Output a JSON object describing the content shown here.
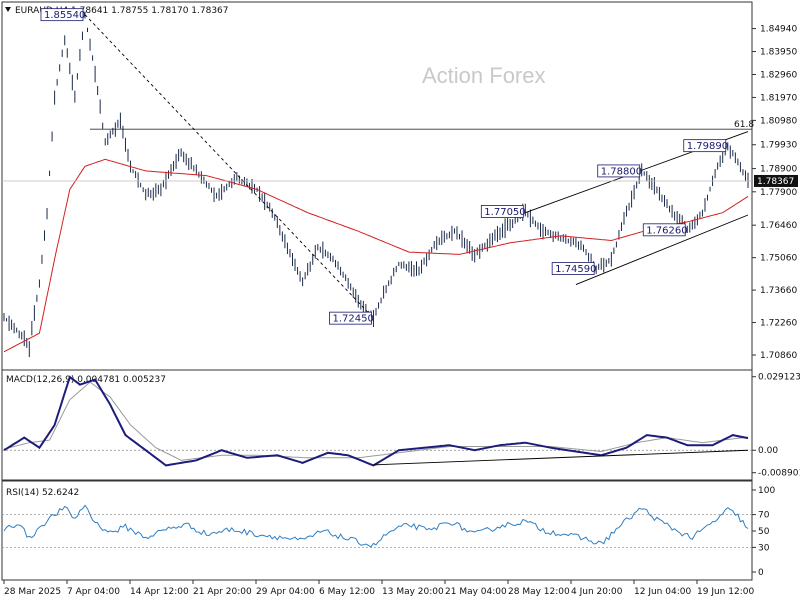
{
  "header": {
    "symbol_line": "EURAUD,H4  1.78641 1.78755 1.78170 1.78367",
    "watermark": "Action Forex"
  },
  "colors": {
    "price_bars": "#1a2a4a",
    "ma_line": "#d42020",
    "macd_line": "#1c1c7a",
    "macd_signal": "#9a9a9a",
    "rsi_line": "#2f7fc4",
    "trendline": "#000000",
    "background": "#ffffff"
  },
  "chart_data": [
    {
      "type": "line",
      "name": "price",
      "title": "EURAUD,H4",
      "ylim": [
        1.703,
        1.86
      ],
      "y_ticks": [
        "1.84940",
        "1.83950",
        "1.82960",
        "1.81970",
        "1.80980",
        "1.79930",
        "1.78900",
        "1.77900",
        "1.76460",
        "1.75060",
        "1.73660",
        "1.72260",
        "1.70860"
      ],
      "current_price": "1.78367",
      "fib_label": "61.8",
      "fib_level": 1.806,
      "x_tick_labels": [
        "28 Mar 2025",
        "7 Apr 04:00",
        "14 Apr 12:00",
        "21 Apr 20:00",
        "29 Apr 04:00",
        "6 May 12:00",
        "13 May 20:00",
        "21 May 04:00",
        "28 May 12:00",
        "4 Jun 20:00",
        "12 Jun 04:00",
        "19 Jun 12:00"
      ],
      "anchors": [
        [
          0,
          1.725
        ],
        [
          6,
          1.718
        ],
        [
          10,
          1.712
        ],
        [
          14,
          1.74
        ],
        [
          17,
          1.77
        ],
        [
          20,
          1.82
        ],
        [
          24,
          1.845
        ],
        [
          28,
          1.82
        ],
        [
          32,
          1.8554
        ],
        [
          36,
          1.83
        ],
        [
          40,
          1.8
        ],
        [
          46,
          1.81
        ],
        [
          50,
          1.79
        ],
        [
          56,
          1.778
        ],
        [
          62,
          1.78
        ],
        [
          70,
          1.796
        ],
        [
          76,
          1.788
        ],
        [
          84,
          1.777
        ],
        [
          92,
          1.785
        ],
        [
          100,
          1.78
        ],
        [
          106,
          1.77
        ],
        [
          114,
          1.75
        ],
        [
          118,
          1.74
        ],
        [
          124,
          1.755
        ],
        [
          130,
          1.75
        ],
        [
          136,
          1.74
        ],
        [
          142,
          1.728
        ],
        [
          146,
          1.7245
        ],
        [
          150,
          1.735
        ],
        [
          156,
          1.748
        ],
        [
          164,
          1.745
        ],
        [
          170,
          1.756
        ],
        [
          178,
          1.762
        ],
        [
          186,
          1.752
        ],
        [
          194,
          1.76
        ],
        [
          200,
          1.765
        ],
        [
          206,
          1.7705
        ],
        [
          212,
          1.763
        ],
        [
          220,
          1.759
        ],
        [
          228,
          1.756
        ],
        [
          234,
          1.7459
        ],
        [
          240,
          1.75
        ],
        [
          246,
          1.77
        ],
        [
          252,
          1.788
        ],
        [
          258,
          1.78
        ],
        [
          264,
          1.77
        ],
        [
          270,
          1.7626
        ],
        [
          276,
          1.77
        ],
        [
          282,
          1.79
        ],
        [
          286,
          1.7989
        ],
        [
          290,
          1.792
        ],
        [
          294,
          1.7837
        ]
      ],
      "ma_anchors": [
        [
          0,
          1.71
        ],
        [
          14,
          1.718
        ],
        [
          20,
          1.75
        ],
        [
          26,
          1.78
        ],
        [
          32,
          1.79
        ],
        [
          40,
          1.793
        ],
        [
          56,
          1.788
        ],
        [
          80,
          1.786
        ],
        [
          100,
          1.78
        ],
        [
          120,
          1.77
        ],
        [
          140,
          1.762
        ],
        [
          160,
          1.753
        ],
        [
          180,
          1.752
        ],
        [
          200,
          1.757
        ],
        [
          220,
          1.76
        ],
        [
          240,
          1.758
        ],
        [
          256,
          1.763
        ],
        [
          270,
          1.766
        ],
        [
          284,
          1.77
        ],
        [
          294,
          1.777
        ]
      ],
      "callouts": [
        {
          "label": "1.85540",
          "index": 32,
          "value": 1.8554
        },
        {
          "label": "1.72450",
          "index": 146,
          "value": 1.7245
        },
        {
          "label": "1.77050",
          "index": 206,
          "value": 1.7705
        },
        {
          "label": "1.74590",
          "index": 234,
          "value": 1.7459
        },
        {
          "label": "1.78800",
          "index": 252,
          "value": 1.788
        },
        {
          "label": "1.76260",
          "index": 270,
          "value": 1.7626
        },
        {
          "label": "1.79890",
          "index": 286,
          "value": 1.7989
        }
      ],
      "trendlines": [
        {
          "style": "dashed",
          "from": [
            32,
            1.8554
          ],
          "to": [
            146,
            1.7245
          ]
        },
        {
          "style": "solid",
          "from": [
            206,
            1.77
          ],
          "to": [
            294,
            1.805
          ]
        },
        {
          "style": "solid",
          "from": [
            226,
            1.739
          ],
          "to": [
            294,
            1.769
          ]
        }
      ]
    },
    {
      "type": "line",
      "name": "macd",
      "title": "MACD(12,26,9) 0.004781 0.005237",
      "ylim": [
        -0.011,
        0.031
      ],
      "y_ticks": [
        "0.029123",
        "0.00",
        "-0.008901"
      ],
      "macd_anchors": [
        [
          0,
          0.0
        ],
        [
          8,
          0.005
        ],
        [
          14,
          0.001
        ],
        [
          20,
          0.01
        ],
        [
          26,
          0.029
        ],
        [
          30,
          0.026
        ],
        [
          36,
          0.028
        ],
        [
          42,
          0.018
        ],
        [
          48,
          0.006
        ],
        [
          56,
          0.0
        ],
        [
          64,
          -0.006
        ],
        [
          76,
          -0.004
        ],
        [
          86,
          0.0
        ],
        [
          96,
          -0.003
        ],
        [
          108,
          -0.002
        ],
        [
          118,
          -0.005
        ],
        [
          128,
          -0.001
        ],
        [
          136,
          -0.002
        ],
        [
          146,
          -0.006
        ],
        [
          156,
          0.0
        ],
        [
          166,
          0.001
        ],
        [
          176,
          0.002
        ],
        [
          186,
          0.0
        ],
        [
          196,
          0.002
        ],
        [
          206,
          0.003
        ],
        [
          216,
          0.001
        ],
        [
          226,
          -0.0005
        ],
        [
          236,
          -0.002
        ],
        [
          246,
          0.001
        ],
        [
          254,
          0.006
        ],
        [
          262,
          0.005
        ],
        [
          270,
          0.002
        ],
        [
          280,
          0.002
        ],
        [
          288,
          0.006
        ],
        [
          294,
          0.0048
        ]
      ],
      "signal_anchors": [
        [
          0,
          0.0005
        ],
        [
          10,
          0.003
        ],
        [
          18,
          0.004
        ],
        [
          26,
          0.02
        ],
        [
          34,
          0.027
        ],
        [
          42,
          0.021
        ],
        [
          50,
          0.01
        ],
        [
          60,
          0.001
        ],
        [
          70,
          -0.004
        ],
        [
          86,
          -0.002
        ],
        [
          100,
          -0.002
        ],
        [
          120,
          -0.003
        ],
        [
          140,
          -0.003
        ],
        [
          156,
          -0.001
        ],
        [
          176,
          0.0015
        ],
        [
          196,
          0.0015
        ],
        [
          216,
          0.0015
        ],
        [
          236,
          -0.0005
        ],
        [
          250,
          0.003
        ],
        [
          262,
          0.005
        ],
        [
          276,
          0.003
        ],
        [
          288,
          0.0045
        ],
        [
          294,
          0.0052
        ]
      ],
      "trendline": {
        "from": [
          146,
          -0.0058
        ],
        "to": [
          294,
          0.0
        ]
      }
    },
    {
      "type": "line",
      "name": "rsi",
      "title": "RSI(14) 52.6242",
      "ylim": [
        0,
        100
      ],
      "y_ticks": [
        "100",
        "70",
        "50",
        "30",
        "0"
      ],
      "levels": [
        70,
        30
      ],
      "rsi_anchors": [
        [
          0,
          52
        ],
        [
          6,
          60
        ],
        [
          10,
          40
        ],
        [
          14,
          55
        ],
        [
          20,
          70
        ],
        [
          24,
          78
        ],
        [
          28,
          65
        ],
        [
          32,
          82
        ],
        [
          36,
          60
        ],
        [
          42,
          48
        ],
        [
          48,
          55
        ],
        [
          56,
          42
        ],
        [
          64,
          52
        ],
        [
          72,
          58
        ],
        [
          80,
          46
        ],
        [
          90,
          52
        ],
        [
          100,
          46
        ],
        [
          110,
          42
        ],
        [
          118,
          38
        ],
        [
          126,
          50
        ],
        [
          136,
          40
        ],
        [
          146,
          32
        ],
        [
          152,
          48
        ],
        [
          160,
          58
        ],
        [
          168,
          50
        ],
        [
          176,
          62
        ],
        [
          186,
          46
        ],
        [
          196,
          56
        ],
        [
          206,
          62
        ],
        [
          214,
          50
        ],
        [
          222,
          46
        ],
        [
          230,
          40
        ],
        [
          236,
          34
        ],
        [
          244,
          58
        ],
        [
          252,
          78
        ],
        [
          258,
          64
        ],
        [
          266,
          50
        ],
        [
          272,
          42
        ],
        [
          280,
          60
        ],
        [
          286,
          76
        ],
        [
          290,
          68
        ],
        [
          294,
          53
        ]
      ]
    }
  ]
}
